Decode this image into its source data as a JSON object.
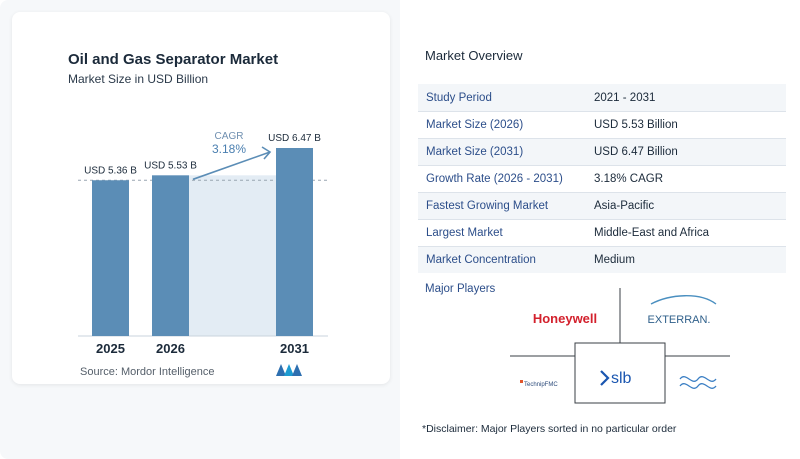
{
  "chart": {
    "title": "Oil and Gas Separator Market",
    "subtitle": "Market Size in USD Billion",
    "cagr_label": "CAGR",
    "cagr_value": "3.18%",
    "source": "Source:  Mordor Intelligence"
  },
  "chart_data": {
    "type": "bar",
    "title": "Oil and Gas Separator Market",
    "subtitle": "Market Size in USD Billion",
    "categories": [
      "2025",
      "2026",
      "2031"
    ],
    "values": [
      5.36,
      5.53,
      6.47
    ],
    "value_labels": [
      "USD 5.36 B",
      "USD 5.53 B",
      "USD 6.47 B"
    ],
    "annotation": "CAGR 3.18%",
    "ylim": [
      0,
      6.47
    ],
    "bar_color": "#5b8db6",
    "shade_color": "#e3ecf4",
    "accent_color": "#5b8db6"
  },
  "overview": {
    "title": "Market Overview",
    "rows": [
      {
        "key": "Study Period",
        "value": "2021 - 2031"
      },
      {
        "key": "Market Size (2026)",
        "value": "USD 5.53 Billion"
      },
      {
        "key": "Market Size (2031)",
        "value": "USD 6.47 Billion"
      },
      {
        "key": "Growth Rate (2026 - 2031)",
        "value": "3.18% CAGR"
      },
      {
        "key": "Fastest Growing Market",
        "value": "Asia-Pacific"
      },
      {
        "key": "Largest Market",
        "value": "Middle-East and Africa"
      },
      {
        "key": "Market Concentration",
        "value": "Medium"
      }
    ]
  },
  "players": {
    "title": "Major Players",
    "logos": [
      "Honeywell",
      "EXTERRAN",
      "TechnipFMC",
      "slb",
      "Alfa Laval"
    ],
    "disclaimer": "*Disclaimer: Major Players sorted in no particular order"
  }
}
